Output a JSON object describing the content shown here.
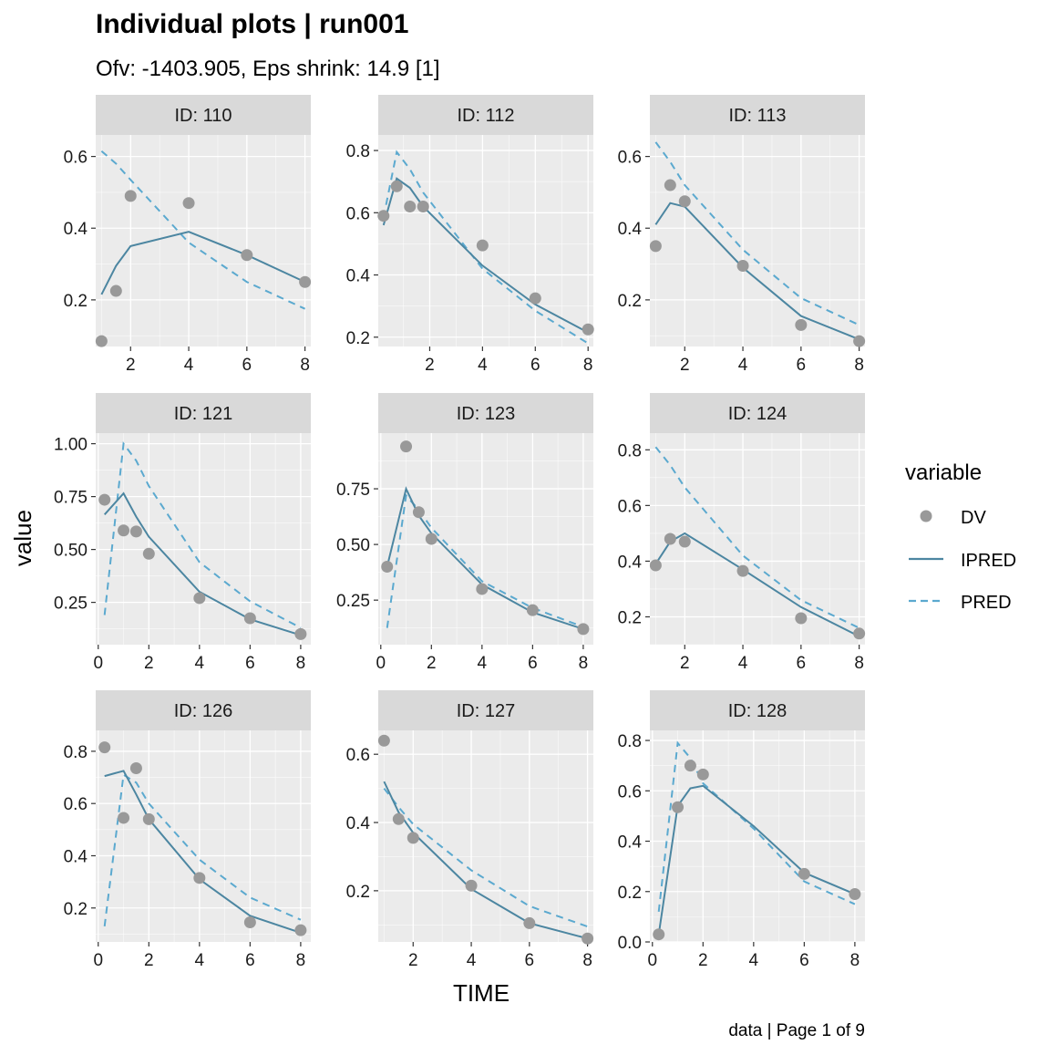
{
  "title": "Individual plots | run001",
  "subtitle": "Ofv: -1403.905, Eps shrink: 14.9 [1]",
  "caption": "data | Page 1 of 9",
  "legend": {
    "title": "variable",
    "entries": [
      {
        "name": "DV",
        "kind": "point"
      },
      {
        "name": "IPRED",
        "kind": "solid"
      },
      {
        "name": "PRED",
        "kind": "dashed"
      }
    ]
  },
  "colors": {
    "dv_points": "#999999",
    "ipred_line": "#4C86A1",
    "pred_line": "#5BA9CF",
    "panel_background": "#EBEBEB",
    "strip_background": "#D9D9D9",
    "gridline": "#FFFFFF"
  },
  "chart_data": {
    "type": "line",
    "layout": "facet-grid-3x3",
    "xlabel": "TIME",
    "ylabel": "value",
    "grid": true,
    "legend_placement": "right",
    "facets": [
      {
        "strip": "ID: 110",
        "xlim": [
          0.8,
          8.2
        ],
        "ylim": [
          0.07,
          0.66
        ],
        "xticks": [
          2,
          4,
          6,
          8
        ],
        "yticks": [
          0.2,
          0.4,
          0.6
        ],
        "dv": {
          "x": [
            1,
            1.5,
            2,
            4,
            6,
            8
          ],
          "y": [
            0.085,
            0.225,
            0.49,
            0.47,
            0.325,
            0.25
          ]
        },
        "ipred": {
          "x": [
            1,
            1.5,
            2,
            4,
            6,
            8
          ],
          "y": [
            0.215,
            0.295,
            0.35,
            0.39,
            0.325,
            0.25
          ]
        },
        "pred": {
          "x": [
            1,
            1.5,
            2,
            4,
            6,
            8
          ],
          "y": [
            0.615,
            0.58,
            0.535,
            0.36,
            0.25,
            0.175
          ]
        }
      },
      {
        "strip": "ID: 112",
        "xlim": [
          0.05,
          8.2
        ],
        "ylim": [
          0.17,
          0.85
        ],
        "xticks": [
          2,
          4,
          6,
          8
        ],
        "yticks": [
          0.2,
          0.4,
          0.6,
          0.8
        ],
        "dv": {
          "x": [
            0.25,
            0.75,
            1.25,
            1.75,
            4,
            6,
            8
          ],
          "y": [
            0.59,
            0.685,
            0.62,
            0.62,
            0.495,
            0.325,
            0.225
          ]
        },
        "ipred": {
          "x": [
            0.25,
            0.75,
            1.25,
            1.75,
            4,
            6,
            8
          ],
          "y": [
            0.56,
            0.71,
            0.68,
            0.62,
            0.43,
            0.305,
            0.215
          ]
        },
        "pred": {
          "x": [
            0.25,
            0.75,
            1.25,
            1.75,
            4,
            6,
            8
          ],
          "y": [
            0.585,
            0.795,
            0.74,
            0.665,
            0.42,
            0.285,
            0.18
          ]
        }
      },
      {
        "strip": "ID: 113",
        "xlim": [
          0.8,
          8.2
        ],
        "ylim": [
          0.07,
          0.66
        ],
        "xticks": [
          2,
          4,
          6,
          8
        ],
        "yticks": [
          0.2,
          0.4,
          0.6
        ],
        "dv": {
          "x": [
            1,
            1.5,
            2,
            4,
            6,
            8
          ],
          "y": [
            0.35,
            0.52,
            0.475,
            0.295,
            0.13,
            0.085
          ]
        },
        "ipred": {
          "x": [
            1,
            1.5,
            2,
            4,
            6,
            8
          ],
          "y": [
            0.41,
            0.47,
            0.46,
            0.29,
            0.155,
            0.09
          ]
        },
        "pred": {
          "x": [
            1,
            1.5,
            2,
            4,
            6,
            8
          ],
          "y": [
            0.64,
            0.585,
            0.52,
            0.34,
            0.205,
            0.13
          ]
        }
      },
      {
        "strip": "ID: 121",
        "xlim": [
          -0.1,
          8.4
        ],
        "ylim": [
          0.05,
          1.05
        ],
        "xticks": [
          0,
          2,
          4,
          6,
          8
        ],
        "yticks": [
          0.25,
          0.5,
          0.75,
          1
        ],
        "dv": {
          "x": [
            0.25,
            1,
            1.5,
            2,
            4,
            6,
            8
          ],
          "y": [
            0.735,
            0.59,
            0.585,
            0.48,
            0.27,
            0.175,
            0.1
          ]
        },
        "ipred": {
          "x": [
            0.25,
            1,
            1.5,
            2,
            4,
            6,
            8
          ],
          "y": [
            0.665,
            0.765,
            0.655,
            0.56,
            0.3,
            0.17,
            0.095
          ]
        },
        "pred": {
          "x": [
            0.25,
            1,
            1.5,
            2,
            4,
            6,
            8
          ],
          "y": [
            0.19,
            1,
            0.92,
            0.8,
            0.44,
            0.255,
            0.13
          ]
        }
      },
      {
        "strip": "ID: 123",
        "xlim": [
          -0.1,
          8.4
        ],
        "ylim": [
          0.05,
          1.0
        ],
        "xticks": [
          0,
          2,
          4,
          6,
          8
        ],
        "yticks": [
          0.25,
          0.5,
          0.75
        ],
        "dv": {
          "x": [
            0.25,
            1,
            1.5,
            2,
            4,
            6,
            8
          ],
          "y": [
            0.4,
            0.94,
            0.645,
            0.525,
            0.3,
            0.205,
            0.12
          ]
        },
        "ipred": {
          "x": [
            0.25,
            1,
            1.5,
            2,
            4,
            6,
            8
          ],
          "y": [
            0.4,
            0.75,
            0.63,
            0.55,
            0.32,
            0.195,
            0.12
          ]
        },
        "pred": {
          "x": [
            0.25,
            1,
            1.5,
            2,
            4,
            6,
            8
          ],
          "y": [
            0.125,
            0.72,
            0.655,
            0.575,
            0.335,
            0.215,
            0.13
          ]
        }
      },
      {
        "strip": "ID: 124",
        "xlim": [
          0.8,
          8.2
        ],
        "ylim": [
          0.1,
          0.86
        ],
        "xticks": [
          2,
          4,
          6,
          8
        ],
        "yticks": [
          0.2,
          0.4,
          0.6,
          0.8
        ],
        "dv": {
          "x": [
            1,
            1.5,
            2,
            4,
            6,
            8
          ],
          "y": [
            0.385,
            0.48,
            0.47,
            0.365,
            0.195,
            0.14
          ]
        },
        "ipred": {
          "x": [
            1,
            1.5,
            2,
            4,
            6,
            8
          ],
          "y": [
            0.39,
            0.47,
            0.5,
            0.37,
            0.235,
            0.13
          ]
        },
        "pred": {
          "x": [
            1,
            1.5,
            2,
            4,
            6,
            8
          ],
          "y": [
            0.81,
            0.745,
            0.665,
            0.42,
            0.26,
            0.16
          ]
        }
      },
      {
        "strip": "ID: 126",
        "xlim": [
          -0.1,
          8.4
        ],
        "ylim": [
          0.07,
          0.88
        ],
        "xticks": [
          0,
          2,
          4,
          6,
          8
        ],
        "yticks": [
          0.2,
          0.4,
          0.6,
          0.8
        ],
        "dv": {
          "x": [
            0.25,
            1,
            1.5,
            2,
            4,
            6,
            8
          ],
          "y": [
            0.815,
            0.545,
            0.735,
            0.54,
            0.315,
            0.145,
            0.115
          ]
        },
        "ipred": {
          "x": [
            0.25,
            1,
            1.5,
            2,
            4,
            6,
            8
          ],
          "y": [
            0.705,
            0.725,
            0.635,
            0.54,
            0.31,
            0.17,
            0.105
          ]
        },
        "pred": {
          "x": [
            0.25,
            1,
            1.5,
            2,
            4,
            6,
            8
          ],
          "y": [
            0.13,
            0.71,
            0.68,
            0.6,
            0.385,
            0.24,
            0.155
          ]
        }
      },
      {
        "strip": "ID: 127",
        "xlim": [
          0.8,
          8.2
        ],
        "ylim": [
          0.05,
          0.67
        ],
        "xticks": [
          2,
          4,
          6,
          8
        ],
        "yticks": [
          0.2,
          0.4,
          0.6
        ],
        "dv": {
          "x": [
            1,
            1.5,
            2,
            4,
            6,
            8
          ],
          "y": [
            0.64,
            0.41,
            0.355,
            0.215,
            0.105,
            0.06
          ]
        },
        "ipred": {
          "x": [
            1,
            1.5,
            2,
            4,
            6,
            8
          ],
          "y": [
            0.52,
            0.43,
            0.37,
            0.205,
            0.105,
            0.06
          ]
        },
        "pred": {
          "x": [
            1,
            1.5,
            2,
            4,
            6,
            8
          ],
          "y": [
            0.5,
            0.445,
            0.395,
            0.26,
            0.155,
            0.095
          ]
        }
      },
      {
        "strip": "ID: 128",
        "xlim": [
          -0.1,
          8.4
        ],
        "ylim": [
          0,
          0.84
        ],
        "xticks": [
          0,
          2,
          4,
          6,
          8
        ],
        "yticks": [
          0,
          0.2,
          0.4,
          0.6,
          0.8
        ],
        "dv": {
          "x": [
            0.25,
            1,
            1.5,
            2,
            6,
            8
          ],
          "y": [
            0.03,
            0.535,
            0.7,
            0.665,
            0.27,
            0.19
          ]
        },
        "ipred": {
          "x": [
            0.25,
            1,
            1.5,
            2,
            4,
            6,
            8
          ],
          "y": [
            0.03,
            0.54,
            0.61,
            0.62,
            0.46,
            0.275,
            0.19
          ]
        },
        "pred": {
          "x": [
            0.25,
            1,
            1.5,
            2,
            4,
            6,
            8
          ],
          "y": [
            0.12,
            0.79,
            0.73,
            0.63,
            0.45,
            0.24,
            0.15
          ]
        }
      }
    ]
  }
}
